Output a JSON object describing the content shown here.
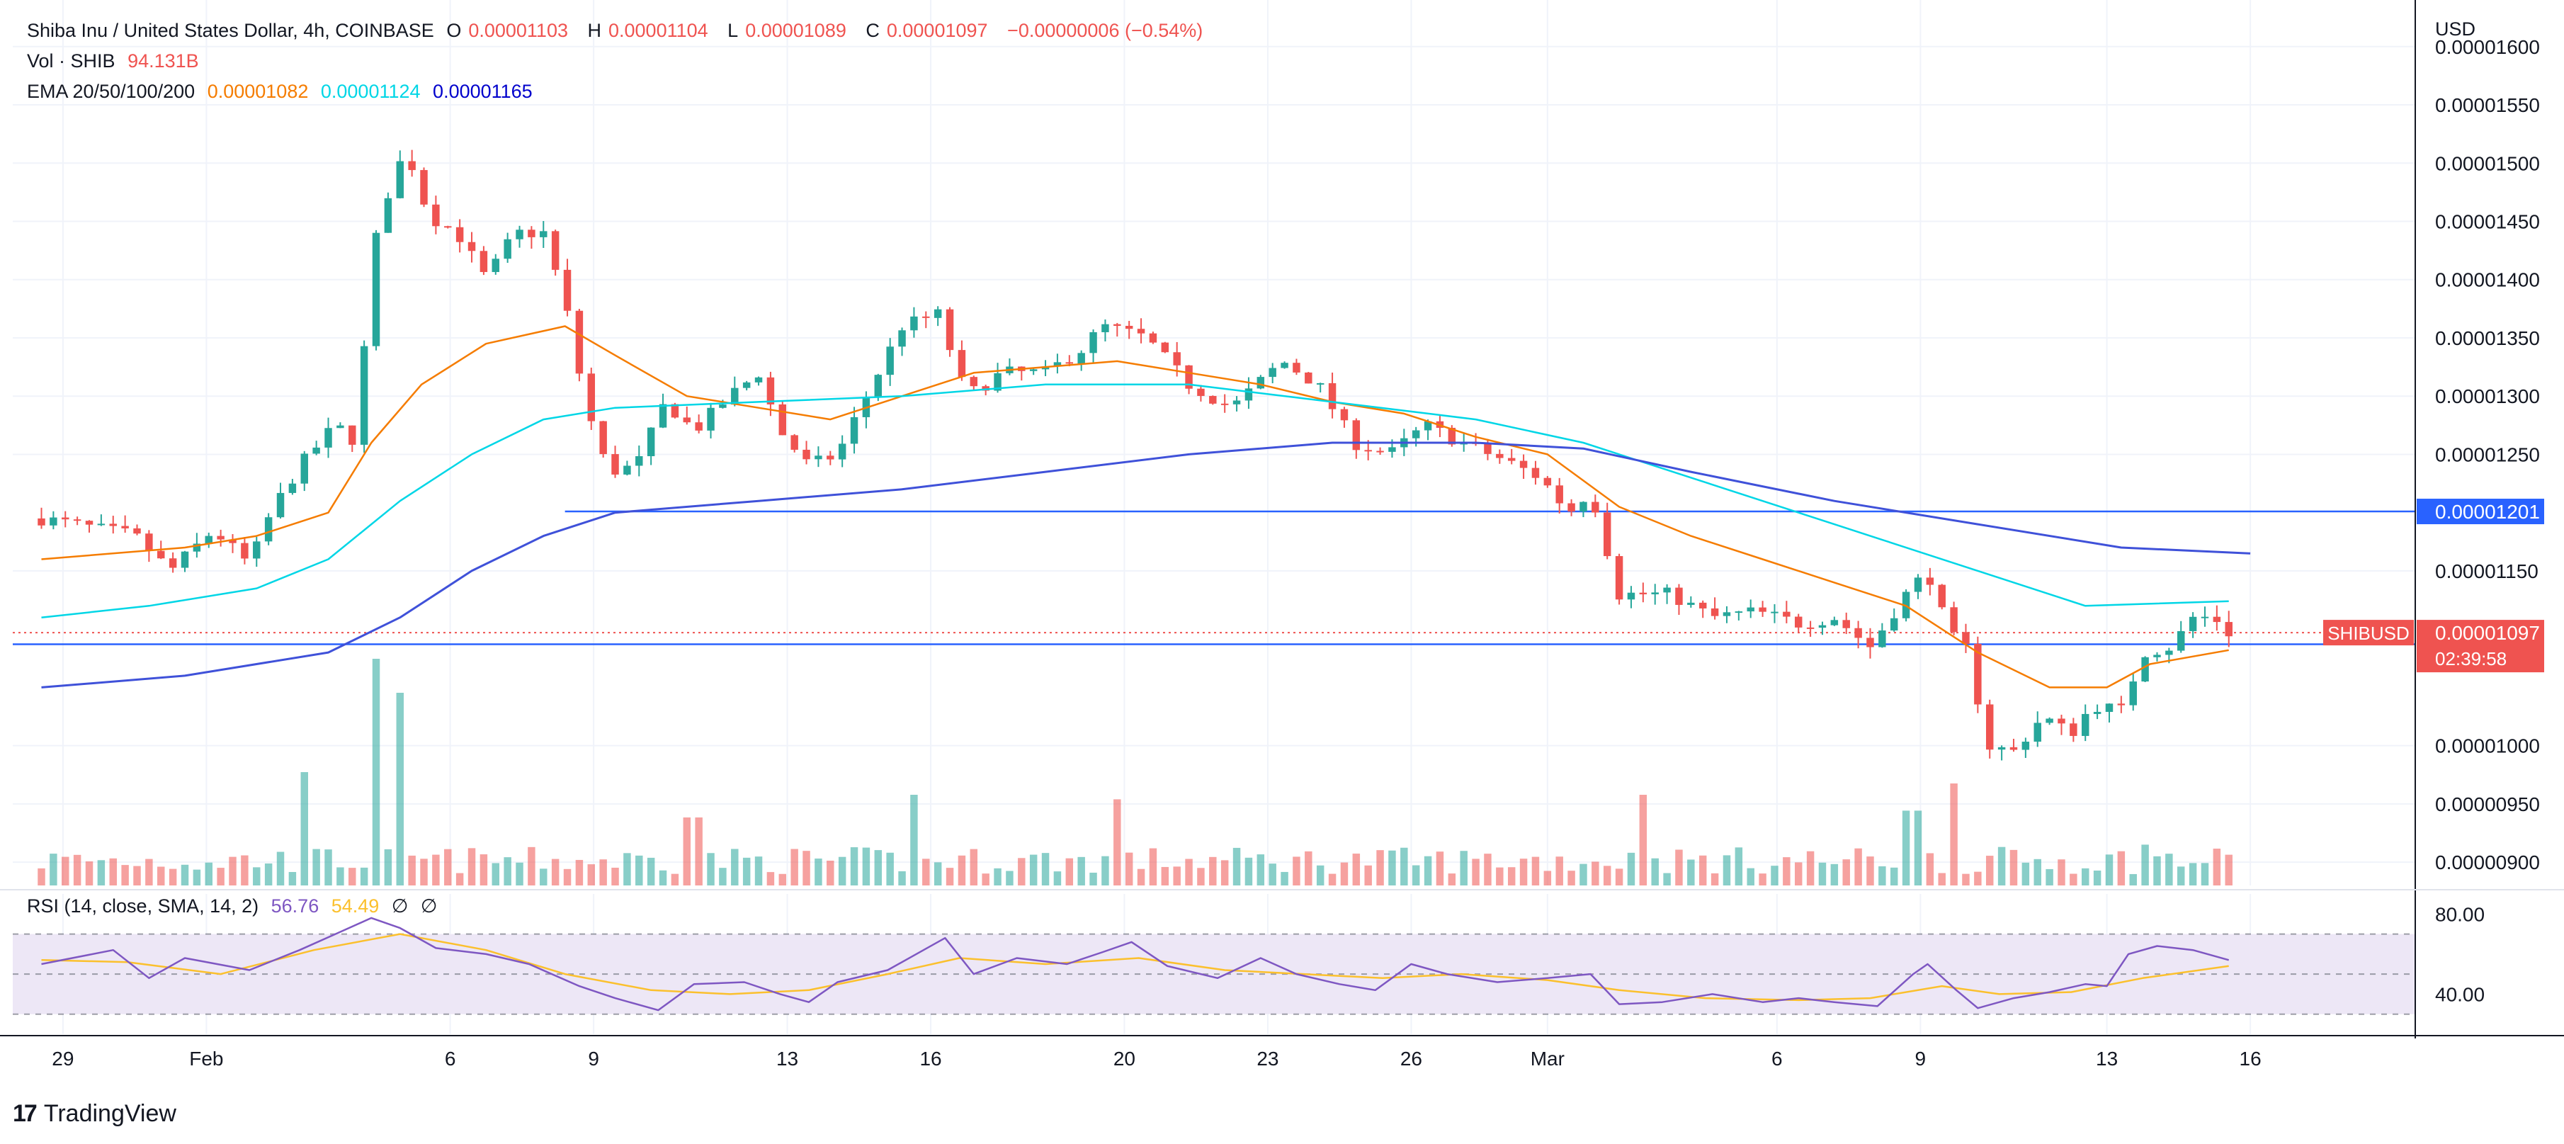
{
  "header": {
    "pair": "Shiba Inu / United States Dollar, 4h, COINBASE",
    "o_label": "O",
    "o": "0.00001103",
    "h_label": "H",
    "h": "0.00001104",
    "l_label": "L",
    "l": "0.00001089",
    "c_label": "C",
    "c": "0.00001097",
    "change": "−0.00000006 (−0.54%)",
    "vol_label": "Vol · SHIB",
    "vol": "94.131B",
    "ema_label": "EMA 20/50/100/200",
    "ema20": "0.00001082",
    "ema50": "0.00001124",
    "ema100": "0.00001165",
    "rsi_label": "RSI (14, close, SMA, 14, 2)",
    "rsi_value": "56.76",
    "rsi_sma": "54.49",
    "rsi_div1": "∅",
    "rsi_div2": "∅"
  },
  "brand": {
    "mark": "17",
    "name": "TradingView"
  },
  "colors": {
    "up": "#26a69a",
    "down": "#ef5350",
    "ema20": "#f57c00",
    "ema50": "#00d6e6",
    "ema100": "#3f51d9",
    "hline": "#2962ff",
    "rsi": "#7e57c2",
    "rsi_sma": "#fbc02d",
    "rsi_band": "#ede7f6"
  },
  "chart_data": {
    "type": "candlestick",
    "currency_label": "USD",
    "price_ticks": [
      1.6e-05,
      1.55e-05,
      1.5e-05,
      1.45e-05,
      1.4e-05,
      1.35e-05,
      1.3e-05,
      1.25e-05,
      1.15e-05,
      1e-05,
      9.5e-06,
      9e-06
    ],
    "price_tick_labels": [
      "0.00001600",
      "0.00001550",
      "0.00001500",
      "0.00001450",
      "0.00001400",
      "0.00001350",
      "0.00001300",
      "0.00001250",
      "0.00001150",
      "0.00001000",
      "0.00000950",
      "0.00000900"
    ],
    "ylim": [
      8.8e-06,
      1.64e-05
    ],
    "rsi_ticks": [
      80,
      40
    ],
    "rsi_tick_labels": [
      "80.00",
      "40.00"
    ],
    "rsi_band": [
      30,
      70
    ],
    "rsi_ylim": [
      20,
      90
    ],
    "x_ticks": [
      {
        "label": "29",
        "t": 0.3
      },
      {
        "label": "Feb",
        "t": 2.3
      },
      {
        "label": "6",
        "t": 5.7
      },
      {
        "label": "9",
        "t": 7.7
      },
      {
        "label": "13",
        "t": 10.4
      },
      {
        "label": "16",
        "t": 12.4
      },
      {
        "label": "20",
        "t": 15.1
      },
      {
        "label": "23",
        "t": 17.1
      },
      {
        "label": "26",
        "t": 19.1
      },
      {
        "label": "Mar",
        "t": 21.0
      },
      {
        "label": "6",
        "t": 24.2
      },
      {
        "label": "9",
        "t": 26.2
      },
      {
        "label": "13",
        "t": 28.8
      },
      {
        "label": "16",
        "t": 30.8
      }
    ],
    "x_range": [
      -0.4,
      33.1
    ],
    "price_path": [
      [
        0,
        1.195e-05
      ],
      [
        1.3,
        1.18e-05
      ],
      [
        1.8,
        1.15e-05
      ],
      [
        2.4,
        1.185e-05
      ],
      [
        2.9,
        1.155e-05
      ],
      [
        3.2,
        1.2e-05
      ],
      [
        3.6,
        1.24e-05
      ],
      [
        4.1,
        1.275e-05
      ],
      [
        4.4,
        1.26e-05
      ],
      [
        4.6,
        1.42e-05
      ],
      [
        4.9,
        1.49e-05
      ],
      [
        5.1,
        1.51e-05
      ],
      [
        5.4,
        1.455e-05
      ],
      [
        5.8,
        1.44e-05
      ],
      [
        6.2,
        1.4e-05
      ],
      [
        6.6,
        1.44e-05
      ],
      [
        7.0,
        1.44e-05
      ],
      [
        7.3,
        1.38e-05
      ],
      [
        7.6,
        1.29e-05
      ],
      [
        7.9,
        1.235e-05
      ],
      [
        8.3,
        1.24e-05
      ],
      [
        8.7,
        1.295e-05
      ],
      [
        9.1,
        1.27e-05
      ],
      [
        9.6,
        1.3e-05
      ],
      [
        10.0,
        1.32e-05
      ],
      [
        10.3,
        1.27e-05
      ],
      [
        10.7,
        1.24e-05
      ],
      [
        11.1,
        1.25e-05
      ],
      [
        11.5,
        1.3e-05
      ],
      [
        12.0,
        1.36e-05
      ],
      [
        12.5,
        1.37e-05
      ],
      [
        12.9,
        1.3e-05
      ],
      [
        13.4,
        1.32e-05
      ],
      [
        14.0,
        1.32e-05
      ],
      [
        14.5,
        1.34e-05
      ],
      [
        14.8,
        1.36e-05
      ],
      [
        15.4,
        1.35e-05
      ],
      [
        16.0,
        1.31e-05
      ],
      [
        16.6,
        1.29e-05
      ],
      [
        17.3,
        1.33e-05
      ],
      [
        17.8,
        1.31e-05
      ],
      [
        18.3,
        1.26e-05
      ],
      [
        18.8,
        1.25e-05
      ],
      [
        19.3,
        1.275e-05
      ],
      [
        19.8,
        1.26e-05
      ],
      [
        20.4,
        1.245e-05
      ],
      [
        20.9,
        1.23e-05
      ],
      [
        21.3,
        1.2e-05
      ],
      [
        21.6,
        1.22e-05
      ],
      [
        22.0,
        1.13e-05
      ],
      [
        22.7,
        1.13e-05
      ],
      [
        23.3,
        1.11e-05
      ],
      [
        23.9,
        1.115e-05
      ],
      [
        24.5,
        1.105e-05
      ],
      [
        25.0,
        1.11e-05
      ],
      [
        25.5,
        1.085e-05
      ],
      [
        26.0,
        1.13e-05
      ],
      [
        26.3,
        1.15e-05
      ],
      [
        26.6,
        1.095e-05
      ],
      [
        26.9,
        1.08e-05
      ],
      [
        27.1,
        1e-05
      ],
      [
        27.5,
        9.95e-06
      ],
      [
        27.9,
        1.025e-05
      ],
      [
        28.3,
        1.01e-05
      ],
      [
        28.6,
        1.035e-05
      ],
      [
        29.0,
        1.03e-05
      ],
      [
        29.3,
        1.08e-05
      ],
      [
        29.7,
        1.085e-05
      ],
      [
        30.0,
        1.11e-05
      ],
      [
        30.3,
        1.11e-05
      ],
      [
        30.5,
        1.097e-05
      ]
    ],
    "ema20_path": [
      [
        0,
        1.16e-05
      ],
      [
        2,
        1.17e-05
      ],
      [
        3,
        1.18e-05
      ],
      [
        4,
        1.2e-05
      ],
      [
        4.6,
        1.26e-05
      ],
      [
        5.3,
        1.31e-05
      ],
      [
        6.2,
        1.345e-05
      ],
      [
        7.3,
        1.36e-05
      ],
      [
        8.0,
        1.335e-05
      ],
      [
        9.0,
        1.3e-05
      ],
      [
        10.0,
        1.29e-05
      ],
      [
        11.0,
        1.28e-05
      ],
      [
        12.0,
        1.3e-05
      ],
      [
        13.0,
        1.32e-05
      ],
      [
        14.0,
        1.325e-05
      ],
      [
        15.0,
        1.33e-05
      ],
      [
        16.0,
        1.32e-05
      ],
      [
        17.0,
        1.31e-05
      ],
      [
        18.0,
        1.295e-05
      ],
      [
        19.0,
        1.285e-05
      ],
      [
        20.0,
        1.265e-05
      ],
      [
        21.0,
        1.25e-05
      ],
      [
        22.0,
        1.205e-05
      ],
      [
        23.0,
        1.18e-05
      ],
      [
        24.0,
        1.16e-05
      ],
      [
        25.0,
        1.14e-05
      ],
      [
        26.0,
        1.12e-05
      ],
      [
        27.0,
        1.08e-05
      ],
      [
        28.0,
        1.05e-05
      ],
      [
        28.8,
        1.05e-05
      ],
      [
        29.4,
        1.07e-05
      ],
      [
        30.5,
        1.082e-05
      ]
    ],
    "ema50_path": [
      [
        0,
        1.11e-05
      ],
      [
        1.5,
        1.12e-05
      ],
      [
        3.0,
        1.135e-05
      ],
      [
        4.0,
        1.16e-05
      ],
      [
        5.0,
        1.21e-05
      ],
      [
        6.0,
        1.25e-05
      ],
      [
        7.0,
        1.28e-05
      ],
      [
        8.0,
        1.29e-05
      ],
      [
        10.0,
        1.295e-05
      ],
      [
        12.0,
        1.3e-05
      ],
      [
        14.0,
        1.31e-05
      ],
      [
        16.0,
        1.31e-05
      ],
      [
        18.0,
        1.295e-05
      ],
      [
        20.0,
        1.28e-05
      ],
      [
        21.5,
        1.26e-05
      ],
      [
        23.0,
        1.23e-05
      ],
      [
        25.0,
        1.19e-05
      ],
      [
        27.0,
        1.15e-05
      ],
      [
        28.5,
        1.12e-05
      ],
      [
        30.5,
        1.124e-05
      ]
    ],
    "ema100_path": [
      [
        0,
        1.05e-05
      ],
      [
        2,
        1.06e-05
      ],
      [
        4,
        1.08e-05
      ],
      [
        5,
        1.11e-05
      ],
      [
        6,
        1.15e-05
      ],
      [
        7,
        1.18e-05
      ],
      [
        8,
        1.2e-05
      ],
      [
        10,
        1.21e-05
      ],
      [
        12,
        1.22e-05
      ],
      [
        14,
        1.235e-05
      ],
      [
        16,
        1.25e-05
      ],
      [
        18,
        1.26e-05
      ],
      [
        20,
        1.26e-05
      ],
      [
        21.5,
        1.255e-05
      ],
      [
        23,
        1.235e-05
      ],
      [
        25,
        1.21e-05
      ],
      [
        27,
        1.19e-05
      ],
      [
        29,
        1.17e-05
      ],
      [
        30.8,
        1.165e-05
      ]
    ],
    "hlines": [
      {
        "price": 1.201e-05,
        "label": "0.00001201",
        "t_start": 7.3,
        "color": "#2962ff"
      },
      {
        "price": 1.087e-05,
        "label": "0.00001087",
        "t_start": -0.4,
        "color": "#2962ff"
      }
    ],
    "last_price": {
      "price": 1.097e-05,
      "label": "0.00001097",
      "symbol": "SHIBUSD",
      "countdown": "02:39:58"
    },
    "volume_spikes": [
      [
        3.6,
        0.5
      ],
      [
        4.6,
        1.0
      ],
      [
        5.0,
        0.85
      ],
      [
        9.1,
        0.3
      ],
      [
        12.2,
        0.4
      ],
      [
        15.0,
        0.38
      ],
      [
        22.4,
        0.4
      ],
      [
        26.1,
        0.33
      ],
      [
        26.7,
        0.45
      ],
      [
        29.3,
        0.18
      ]
    ],
    "rsi_path": [
      [
        0,
        55
      ],
      [
        1,
        62
      ],
      [
        1.5,
        48
      ],
      [
        2,
        58
      ],
      [
        2.9,
        52
      ],
      [
        3.6,
        62
      ],
      [
        4.1,
        70
      ],
      [
        4.6,
        78
      ],
      [
        5.0,
        73
      ],
      [
        5.5,
        63
      ],
      [
        6.2,
        60
      ],
      [
        6.8,
        55
      ],
      [
        7.5,
        44
      ],
      [
        8.0,
        38
      ],
      [
        8.6,
        32
      ],
      [
        9.1,
        45
      ],
      [
        9.8,
        46
      ],
      [
        10.3,
        40
      ],
      [
        10.7,
        36
      ],
      [
        11.1,
        46
      ],
      [
        11.8,
        52
      ],
      [
        12.3,
        62
      ],
      [
        12.6,
        68
      ],
      [
        13.0,
        50
      ],
      [
        13.6,
        58
      ],
      [
        14.3,
        55
      ],
      [
        14.8,
        61
      ],
      [
        15.2,
        66
      ],
      [
        15.7,
        54
      ],
      [
        16.4,
        48
      ],
      [
        17.0,
        58
      ],
      [
        17.5,
        50
      ],
      [
        18.1,
        45
      ],
      [
        18.6,
        42
      ],
      [
        19.1,
        55
      ],
      [
        19.6,
        50
      ],
      [
        20.3,
        46
      ],
      [
        21.0,
        48
      ],
      [
        21.6,
        50
      ],
      [
        22.0,
        35
      ],
      [
        22.6,
        36
      ],
      [
        23.3,
        40
      ],
      [
        24.0,
        36
      ],
      [
        24.5,
        38
      ],
      [
        25.0,
        36
      ],
      [
        25.6,
        34
      ],
      [
        26.1,
        50
      ],
      [
        26.3,
        55
      ],
      [
        26.7,
        42
      ],
      [
        27.0,
        33
      ],
      [
        27.5,
        38
      ],
      [
        28.0,
        41
      ],
      [
        28.5,
        45
      ],
      [
        28.8,
        44
      ],
      [
        29.1,
        60
      ],
      [
        29.5,
        64
      ],
      [
        30.0,
        62
      ],
      [
        30.5,
        57
      ]
    ],
    "rsi_sma_path": [
      [
        0,
        57
      ],
      [
        1.2,
        56
      ],
      [
        2.5,
        50
      ],
      [
        3.8,
        62
      ],
      [
        5.0,
        70
      ],
      [
        6.2,
        62
      ],
      [
        7.3,
        50
      ],
      [
        8.5,
        42
      ],
      [
        9.6,
        40
      ],
      [
        10.7,
        42
      ],
      [
        11.8,
        50
      ],
      [
        12.8,
        58
      ],
      [
        14.0,
        55
      ],
      [
        15.3,
        58
      ],
      [
        16.5,
        52
      ],
      [
        17.6,
        50
      ],
      [
        18.7,
        48
      ],
      [
        19.8,
        50
      ],
      [
        21.0,
        47
      ],
      [
        22.0,
        42
      ],
      [
        23.2,
        38
      ],
      [
        24.5,
        37
      ],
      [
        25.5,
        38
      ],
      [
        26.5,
        44
      ],
      [
        27.3,
        40
      ],
      [
        28.3,
        41
      ],
      [
        29.3,
        48
      ],
      [
        30.5,
        54
      ]
    ]
  }
}
